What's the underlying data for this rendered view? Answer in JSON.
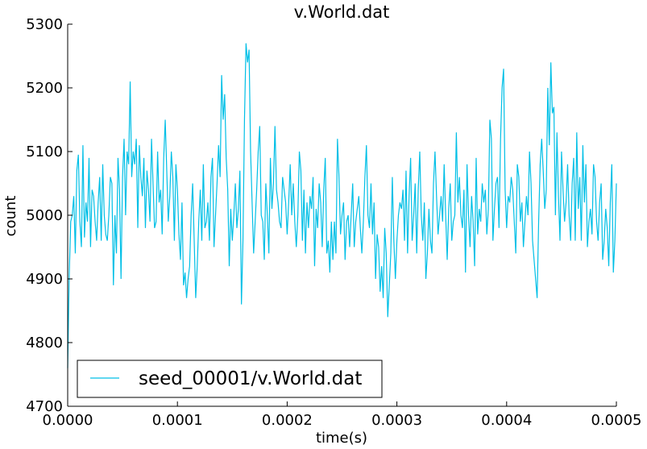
{
  "chart_data": {
    "type": "line",
    "title": "v.World.dat",
    "xlabel": "time(s)",
    "ylabel": "count",
    "xlim": [
      0.0,
      0.0005
    ],
    "ylim": [
      4700,
      5300
    ],
    "xticks": [
      "0.0000",
      "0.0001",
      "0.0002",
      "0.0003",
      "0.0004",
      "0.0005"
    ],
    "yticks": [
      "4700",
      "4800",
      "4900",
      "5000",
      "5100",
      "5200",
      "5300"
    ],
    "grid": false,
    "legend_position": "bottom-left",
    "series": [
      {
        "name": "seed_00001/v.World.dat",
        "color": "#00bfe6",
        "x_start": 0.0,
        "x_end": 0.0005,
        "values": [
          4760,
          4905,
          4990,
          5000,
          5030,
          4940,
          5070,
          5095,
          4990,
          4950,
          5110,
          4965,
          5020,
          4990,
          5090,
          4950,
          5040,
          5030,
          4990,
          4960,
          5020,
          5060,
          4960,
          5080,
          5000,
          4970,
          4960,
          5000,
          5060,
          5050,
          4890,
          5000,
          4940,
          5090,
          5040,
          4900,
          5060,
          5120,
          5000,
          5100,
          5080,
          5210,
          5060,
          5100,
          5080,
          5120,
          4980,
          5110,
          5060,
          5030,
          5090,
          4980,
          5070,
          5040,
          4990,
          5120,
          5050,
          4980,
          4990,
          5100,
          5020,
          5040,
          4970,
          5090,
          5150,
          5070,
          4990,
          5030,
          5100,
          5060,
          4960,
          5080,
          5040,
          4970,
          4930,
          5020,
          4890,
          4910,
          4870,
          4900,
          4920,
          5000,
          5050,
          4960,
          4870,
          4920,
          4990,
          5040,
          4960,
          5080,
          4980,
          4990,
          5020,
          4960,
          5060,
          5090,
          4950,
          5000,
          5050,
          5110,
          5060,
          5220,
          5150,
          5190,
          5090,
          5040,
          4920,
          5010,
          4960,
          5000,
          5050,
          4980,
          5010,
          5070,
          4860,
          4960,
          5150,
          5270,
          5240,
          5260,
          5100,
          5020,
          4940,
          4990,
          5040,
          5100,
          5140,
          5000,
          4990,
          4930,
          5050,
          5000,
          4940,
          5090,
          5010,
          5050,
          5140,
          5040,
          5020,
          4990,
          4980,
          5060,
          5040,
          5020,
          4970,
          5020,
          5080,
          5000,
          5050,
          4990,
          4950,
          5000,
          5100,
          5070,
          4960,
          5040,
          4940,
          5020,
          4980,
          5030,
          5010,
          5060,
          4920,
          5010,
          4980,
          5050,
          5020,
          4950,
          5040,
          5090,
          4940,
          4960,
          4910,
          4990,
          4930,
          4990,
          4940,
          5120,
          5060,
          4970,
          5000,
          5020,
          4930,
          4990,
          5000,
          4950,
          5000,
          5050,
          4950,
          4990,
          5010,
          5030,
          4980,
          4940,
          4990,
          5060,
          5110,
          5000,
          4980,
          5050,
          4970,
          5020,
          4900,
          4970,
          4950,
          4880,
          4920,
          4870,
          4980,
          4940,
          4840,
          4890,
          4940,
          5060,
          4960,
          4900,
          4960,
          5000,
          5020,
          5010,
          5040,
          4960,
          5070,
          4940,
          5030,
          5090,
          4960,
          5000,
          5050,
          4940,
          5040,
          5100,
          5000,
          4960,
          5020,
          4900,
          4940,
          5010,
          4960,
          4940,
          5050,
          5100,
          5030,
          4970,
          5000,
          5030,
          4990,
          5080,
          5000,
          4930,
          5010,
          5050,
          4960,
          4990,
          5000,
          5130,
          5020,
          5060,
          5000,
          4980,
          5040,
          4910,
          5080,
          5000,
          4950,
          5030,
          4990,
          4920,
          5090,
          4970,
          5010,
          4990,
          5050,
          5020,
          5040,
          4970,
          5010,
          5150,
          5120,
          4960,
          5010,
          5050,
          5060,
          4980,
          5120,
          5200,
          5230,
          5040,
          4980,
          5030,
          5020,
          5060,
          5040,
          4990,
          4940,
          5080,
          5060,
          4990,
          5020,
          4950,
          4990,
          5030,
          5000,
          5100,
          5050,
          4960,
          4930,
          4900,
          4870,
          4990,
          5080,
          5120,
          5070,
          5010,
          5040,
          5200,
          5110,
          5240,
          5160,
          5170,
          5000,
          5130,
          5030,
          4960,
          5100,
          5040,
          4990,
          5020,
          5080,
          5000,
          4960,
          5050,
          5090,
          4960,
          5130,
          5010,
          5060,
          4960,
          5110,
          5020,
          5080,
          4950,
          4990,
          5010,
          4970,
          5080,
          5060,
          4990,
          4960,
          5020,
          5050,
          4930,
          4960,
          5010,
          4980,
          4920,
          5020,
          5080,
          4910,
          4960,
          5050
        ]
      }
    ]
  }
}
